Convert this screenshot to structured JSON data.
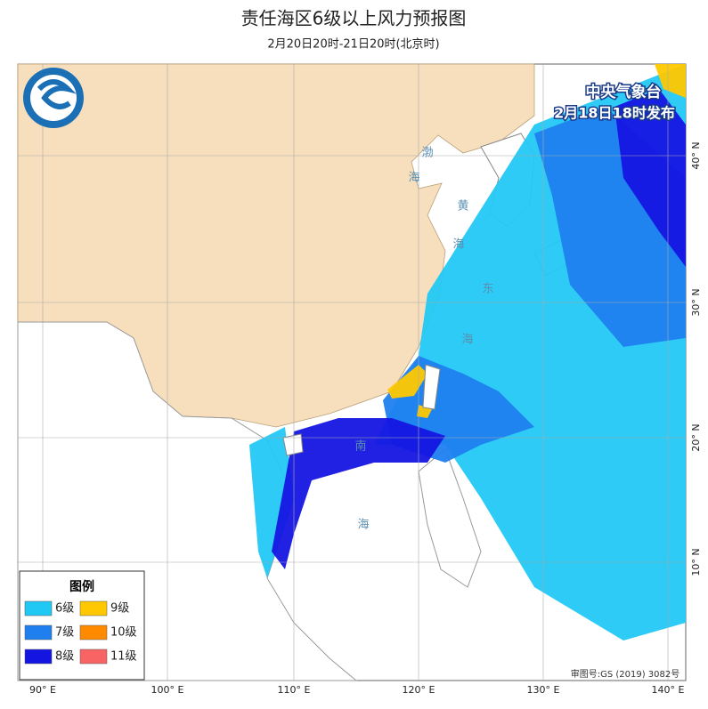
{
  "header": {
    "title": "责任海区6级以上风力预报图",
    "subtitle": "2月20日20时-21日20时(北京时)"
  },
  "issuer": {
    "name": "中央气象台",
    "time": "2月18日18时发布"
  },
  "legend": {
    "title": "图例",
    "items": [
      {
        "label": "6级",
        "color": "#22c8f4"
      },
      {
        "label": "9级",
        "color": "#ffc800"
      },
      {
        "label": "7级",
        "color": "#1f7fef"
      },
      {
        "label": "10级",
        "color": "#ff8a00"
      },
      {
        "label": "8级",
        "color": "#1515e2"
      },
      {
        "label": "11级",
        "color": "#f86464"
      }
    ]
  },
  "axes": {
    "longitudes": [
      "90° E",
      "100° E",
      "110° E",
      "120° E",
      "130° E",
      "140° E"
    ],
    "latitudes": [
      "40° N",
      "30° N",
      "20° N",
      "10° N"
    ]
  },
  "sea_labels": [
    "渤",
    "海",
    "黄",
    "海",
    "东",
    "海",
    "南",
    "海"
  ],
  "approval": "审图号:GS (2019) 3082号"
}
